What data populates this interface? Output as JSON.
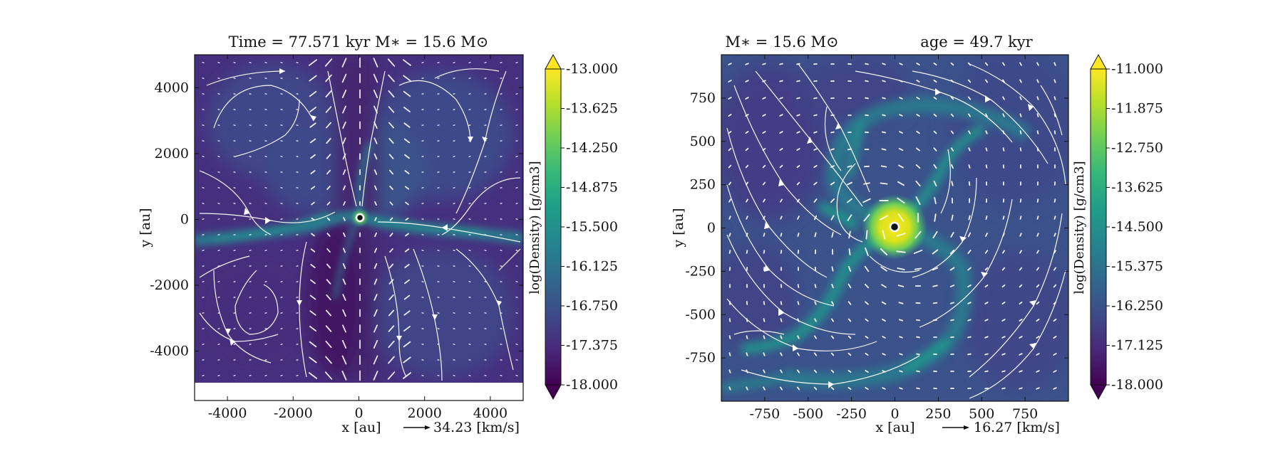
{
  "chart_data": [
    {
      "type": "heatmap",
      "panel": "left",
      "title": "Time = 77.571 kyr    M∗ = 15.6 M⊙",
      "xlabel": "x [au]",
      "ylabel": "y [au]",
      "xlim": [
        -5000,
        5000
      ],
      "ylim": [
        -5500,
        5000
      ],
      "data_extent_y": [
        -5000,
        5000
      ],
      "x_ticks": [
        -4000,
        -2000,
        0,
        2000,
        4000
      ],
      "x_tick_labels": [
        "-4000",
        "-2000",
        "0",
        "2000",
        "4000"
      ],
      "y_ticks": [
        4000,
        2000,
        0,
        -2000,
        -4000
      ],
      "y_tick_labels": [
        "4000",
        "2000",
        "0",
        "-2000",
        "-4000"
      ],
      "velocity_key": "34.23 [km/s]",
      "colorbar": {
        "label": "log(Density) [g/cm3]",
        "range": [
          -18.0,
          -13.0
        ],
        "ticks": [
          -13.0,
          -13.625,
          -14.25,
          -14.875,
          -15.5,
          -16.125,
          -16.75,
          -17.375,
          -18.0
        ],
        "tick_labels": [
          "-13.000",
          "-13.625",
          "-14.250",
          "-14.875",
          "-15.500",
          "-16.125",
          "-16.750",
          "-17.375",
          "-18.000"
        ],
        "colormap": "viridis"
      },
      "features": "bipolar outflow along y axis, equatorial filament along y = -500 au, sink particle at origin"
    },
    {
      "type": "heatmap",
      "panel": "right",
      "title_mass": "M∗ = 15.6 M⊙",
      "title_age": "age = 49.7 kyr",
      "xlabel": "x [au]",
      "ylabel": "y [au]",
      "xlim": [
        -1000,
        1000
      ],
      "ylim": [
        -1000,
        1000
      ],
      "x_ticks": [
        -750,
        -500,
        -250,
        0,
        250,
        500,
        750
      ],
      "x_tick_labels": [
        "-750",
        "-500",
        "-250",
        "0",
        "250",
        "500",
        "750"
      ],
      "y_ticks": [
        750,
        500,
        250,
        0,
        -250,
        -500,
        -750
      ],
      "y_tick_labels": [
        "750",
        "500",
        "250",
        "0",
        "-250",
        "-500",
        "-750"
      ],
      "velocity_key": "16.27 [km/s]",
      "colorbar": {
        "label": "log(Density) [g/cm3]",
        "range": [
          -18.0,
          -11.0
        ],
        "ticks": [
          -11.0,
          -11.875,
          -12.75,
          -13.625,
          -14.5,
          -15.375,
          -16.25,
          -17.125,
          -18.0
        ],
        "tick_labels": [
          "-11.000",
          "-11.875",
          "-12.750",
          "-13.625",
          "-14.500",
          "-15.375",
          "-16.250",
          "-17.125",
          "-18.000"
        ],
        "colormap": "viridis"
      },
      "features": "rotating spiral arms around dense central disk, sink particle at origin"
    }
  ],
  "colors": {
    "viridis": [
      "#440154",
      "#482878",
      "#3e4a89",
      "#31688e",
      "#26828e",
      "#1f9e89",
      "#35b779",
      "#6ece58",
      "#b5de2b",
      "#fde725"
    ],
    "arrow": "#ffffff"
  }
}
